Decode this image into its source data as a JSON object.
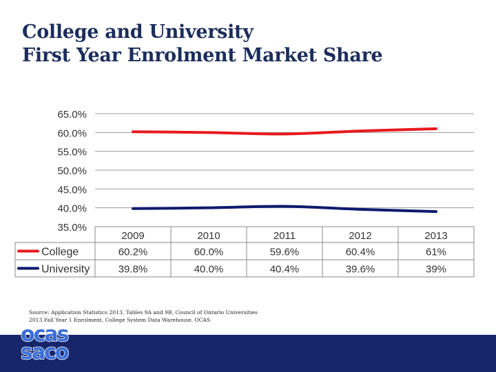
{
  "slide": {
    "title_line1": "College  and University",
    "title_line2": "First Year Enrolment Market Share",
    "source_line1": "Source: Application Statistics 2013, Tables 9A and 9B, Council of Ontario Universities",
    "source_line2": "2013 Fall Year 1 Enrolment, College System Data Warehouse, OCAS",
    "logo_top": "ocas",
    "logo_bottom": "saco"
  },
  "chart_data": {
    "type": "line",
    "title": "",
    "xlabel": "",
    "ylabel": "",
    "categories": [
      "2009",
      "2010",
      "2011",
      "2012",
      "2013"
    ],
    "yticks": [
      "65.0%",
      "60.0%",
      "55.0%",
      "50.0%",
      "45.0%",
      "40.0%",
      "35.0%"
    ],
    "ylim": [
      35,
      65
    ],
    "grid": true,
    "legend": "data-table",
    "series": [
      {
        "name": "College",
        "color": "#e8191c",
        "values": [
          60.2,
          60.0,
          59.6,
          60.4,
          61
        ],
        "labels": [
          "60.2%",
          "60.0%",
          "59.6%",
          "60.4%",
          "61%"
        ]
      },
      {
        "name": "University",
        "color": "#0f1a6e",
        "values": [
          39.8,
          40.0,
          40.4,
          39.6,
          39
        ],
        "labels": [
          "39.8%",
          "40.0%",
          "40.4%",
          "39.6%",
          "39%"
        ]
      }
    ]
  },
  "colors": {
    "title": "#1b2d5c",
    "footer": "#17266b",
    "logo": "#3a6fd8"
  }
}
